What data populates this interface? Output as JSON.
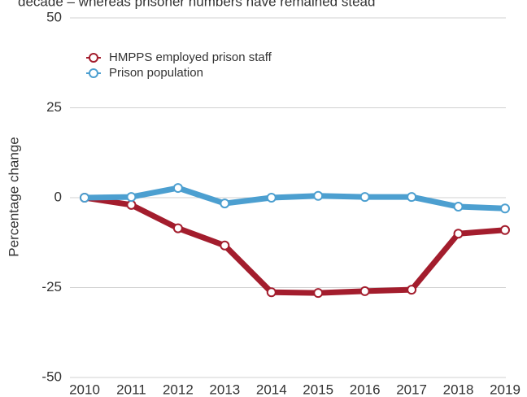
{
  "chart_data": {
    "type": "line",
    "title": "decade – whereas prisoner numbers have remained stead",
    "ylabel": "Percentage change",
    "categories": [
      "2010",
      "2011",
      "2012",
      "2013",
      "2014",
      "2015",
      "2016",
      "2017",
      "2018",
      "2019"
    ],
    "series": [
      {
        "name": "HMPPS employed prison staff",
        "color": "#a31d2d",
        "values": [
          0,
          -2,
          -8.5,
          -13.3,
          -26.3,
          -26.5,
          -26,
          -25.6,
          -10,
          -9
        ]
      },
      {
        "name": "Prison population",
        "color": "#4c9fd0",
        "values": [
          0,
          0.2,
          2.7,
          -1.6,
          0,
          0.5,
          0.2,
          0.2,
          -2.5,
          -3
        ]
      }
    ],
    "ylim": [
      -50,
      50
    ],
    "yticks": [
      -50,
      -25,
      0,
      25,
      50
    ],
    "grid": true,
    "legend": "top-left"
  }
}
